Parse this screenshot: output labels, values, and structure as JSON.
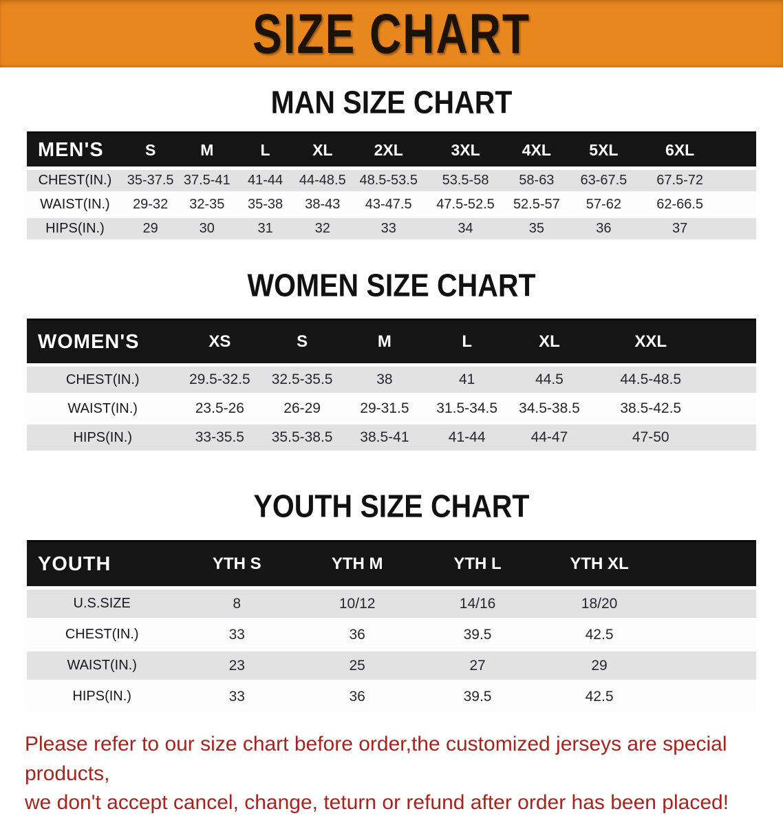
{
  "banner": {
    "title": "SIZE CHART",
    "bg_color": "#e9871f"
  },
  "sections": [
    {
      "id": "men",
      "heading": "MAN SIZE CHART",
      "table": {
        "header": [
          "MEN'S",
          "S",
          "M",
          "L",
          "XL",
          "2XL",
          "3XL",
          "4XL",
          "5XL",
          "6XL"
        ],
        "rows": [
          {
            "label": "CHEST(IN.)",
            "shaded": true,
            "values": [
              "35-37.5",
              "37.5-41",
              "41-44",
              "44-48.5",
              "48.5-53.5",
              "53.5-58",
              "58-63",
              "63-67.5",
              "67.5-72"
            ]
          },
          {
            "label": "WAIST(IN.)",
            "shaded": false,
            "values": [
              "29-32",
              "32-35",
              "35-38",
              "38-43",
              "43-47.5",
              "47.5-52.5",
              "52.5-57",
              "57-62",
              "62-66.5"
            ]
          },
          {
            "label": "HIPS(IN.)",
            "shaded": true,
            "values": [
              "29",
              "30",
              "31",
              "32",
              "33",
              "34",
              "35",
              "36",
              "37"
            ]
          }
        ]
      }
    },
    {
      "id": "women",
      "heading": "WOMEN SIZE CHART",
      "table": {
        "header": [
          "WOMEN'S",
          "XS",
          "S",
          "M",
          "L",
          "XL",
          "XXL"
        ],
        "rows": [
          {
            "label": "CHEST(IN.)",
            "shaded": true,
            "values": [
              "29.5-32.5",
              "32.5-35.5",
              "38",
              "41",
              "44.5",
              "44.5-48.5"
            ]
          },
          {
            "label": "WAIST(IN.)",
            "shaded": false,
            "values": [
              "23.5-26",
              "26-29",
              "29-31.5",
              "31.5-34.5",
              "34.5-38.5",
              "38.5-42.5"
            ]
          },
          {
            "label": "HIPS(IN.)",
            "shaded": true,
            "values": [
              "33-35.5",
              "35.5-38.5",
              "38.5-41",
              "41-44",
              "44-47",
              "47-50"
            ]
          }
        ]
      }
    },
    {
      "id": "youth",
      "heading": "YOUTH SIZE CHART",
      "table": {
        "header": [
          "YOUTH",
          "YTH S",
          "YTH M",
          "YTH L",
          "YTH XL"
        ],
        "rows": [
          {
            "label": "U.S.SIZE",
            "shaded": true,
            "values": [
              "8",
              "10/12",
              "14/16",
              "18/20"
            ]
          },
          {
            "label": "CHEST(IN.)",
            "shaded": false,
            "values": [
              "33",
              "36",
              "39.5",
              "42.5"
            ]
          },
          {
            "label": "WAIST(IN.)",
            "shaded": true,
            "values": [
              "23",
              "25",
              "27",
              "29"
            ]
          },
          {
            "label": "HIPS(IN.)",
            "shaded": false,
            "values": [
              "33",
              "36",
              "39.5",
              "42.5"
            ]
          }
        ]
      }
    }
  ],
  "disclaimer": {
    "line1": "Please refer to our size chart before order,the customized jerseys are special products,",
    "line2": "we don't accept cancel, change, teturn or refund after order has been placed!",
    "color": "#a6241d"
  }
}
